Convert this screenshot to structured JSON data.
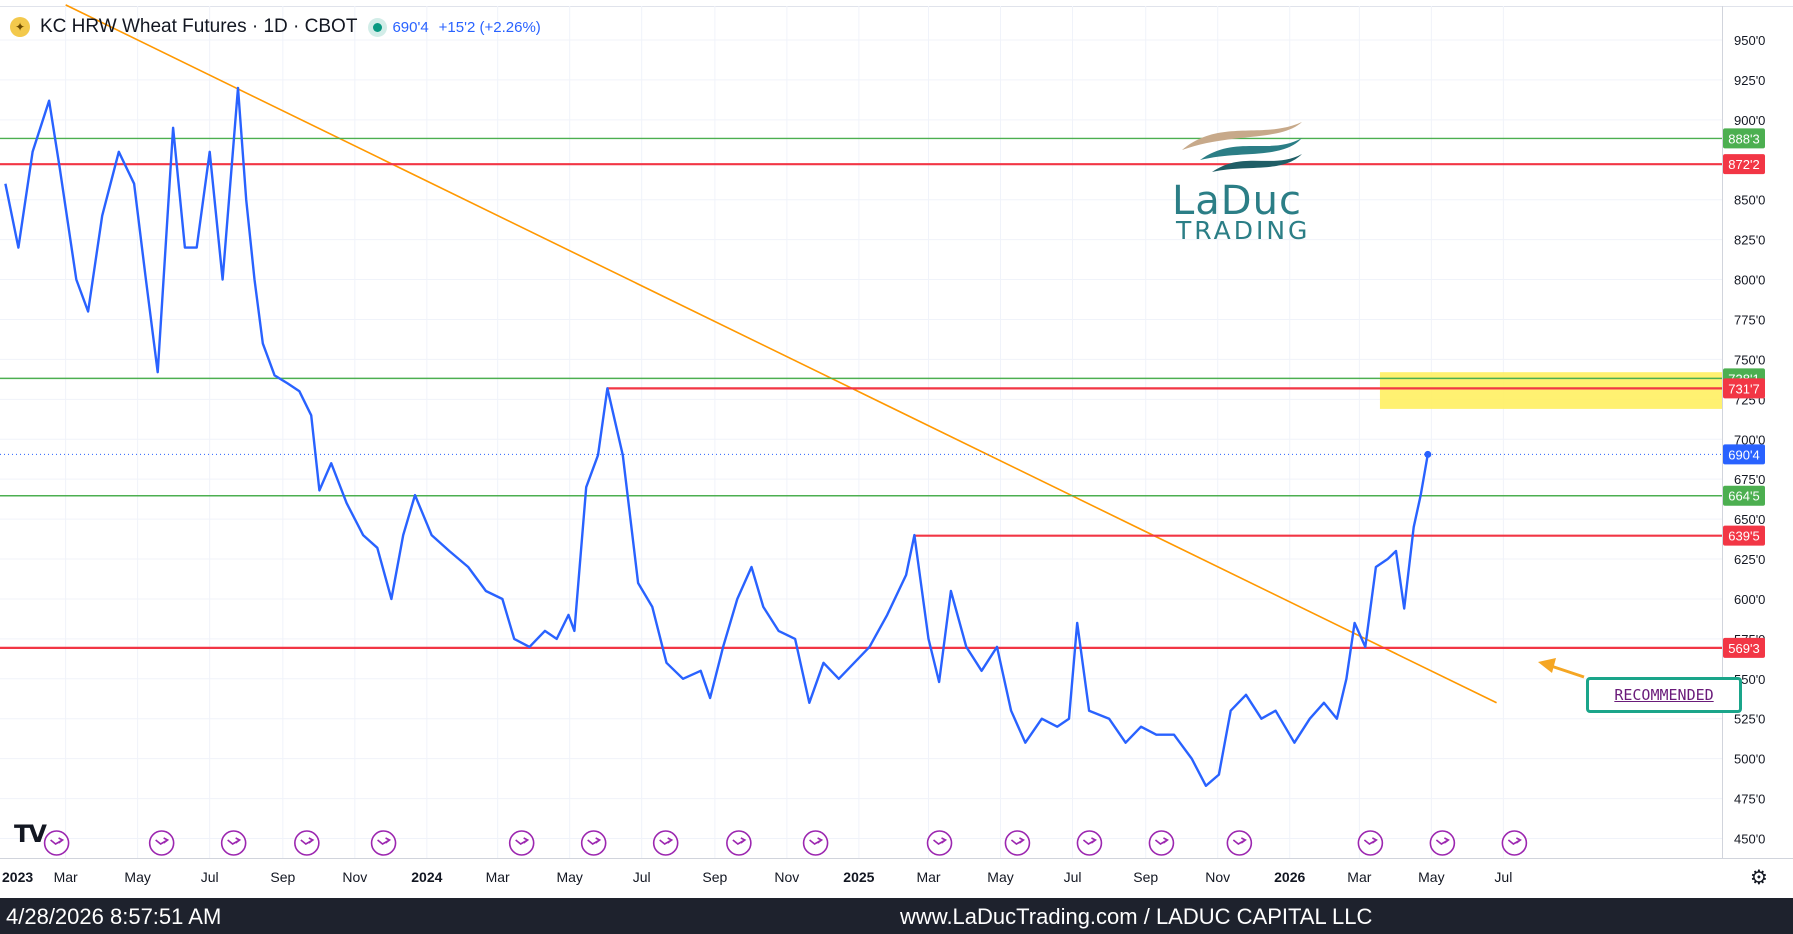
{
  "header": {
    "title": "KC HRW Wheat Futures · 1D · CBOT",
    "price": "690'4",
    "change": "+15'2 (+2.26%)",
    "symbol_icon": "wheat-icon"
  },
  "footer": {
    "timestamp": "4/28/2026 8:57:51 AM",
    "credit": "www.LaDucTrading.com / LADUC CAPITAL LLC"
  },
  "watermark": {
    "brand": "LaDuc",
    "sub": "TRADING",
    "platform_logo": "TV"
  },
  "callout": {
    "label": "RECOMMENDED"
  },
  "colors": {
    "series": "#2962ff",
    "support_resistance": "#f23645",
    "green_level": "#4caf50",
    "trendline": "#ff9800",
    "highlight": "#ffee58",
    "callout_border": "#1aa58a",
    "event_marker": "#9c27b0"
  },
  "chart_data": {
    "type": "line",
    "title": "KC HRW Wheat Futures · 1D · CBOT",
    "xlabel": "",
    "ylabel": "",
    "ylim": [
      440,
      965
    ],
    "x_tick_labels": [
      "2023",
      "Mar",
      "May",
      "Jul",
      "Sep",
      "Nov",
      "2024",
      "Mar",
      "May",
      "Jul",
      "Sep",
      "Nov",
      "2025",
      "Mar",
      "May",
      "Jul",
      "Sep",
      "Nov",
      "2026",
      "Mar",
      "May",
      "Jul"
    ],
    "x_tick_dates": [
      "2023-01-01",
      "2023-03-01",
      "2023-05-01",
      "2023-07-01",
      "2023-09-01",
      "2023-11-01",
      "2024-01-01",
      "2024-03-01",
      "2024-05-01",
      "2024-07-01",
      "2024-09-01",
      "2024-11-01",
      "2025-01-01",
      "2025-03-01",
      "2025-05-01",
      "2025-07-01",
      "2025-09-01",
      "2025-11-01",
      "2026-01-01",
      "2026-03-01",
      "2026-05-01",
      "2026-07-01"
    ],
    "y_tick_labels": [
      "950'0",
      "925'0",
      "900'0",
      "850'0",
      "825'0",
      "800'0",
      "775'0",
      "750'0",
      "725'0",
      "700'0",
      "675'0",
      "650'0",
      "625'0",
      "600'0",
      "575'0",
      "550'0",
      "525'0",
      "500'0",
      "475'0",
      "450'0"
    ],
    "y_tick_values": [
      950,
      925,
      900,
      850,
      825,
      800,
      775,
      750,
      725,
      700,
      675,
      650,
      625,
      600,
      575,
      550,
      525,
      500,
      475,
      450
    ],
    "series": [
      {
        "values": [
          [
            "2023-01-09",
            860
          ],
          [
            "2023-01-20",
            820
          ],
          [
            "2023-02-01",
            880
          ],
          [
            "2023-02-15",
            912
          ],
          [
            "2023-02-24",
            870
          ],
          [
            "2023-03-10",
            800
          ],
          [
            "2023-03-20",
            780
          ],
          [
            "2023-04-01",
            840
          ],
          [
            "2023-04-15",
            880
          ],
          [
            "2023-04-28",
            860
          ],
          [
            "2023-05-08",
            800
          ],
          [
            "2023-05-18",
            742
          ],
          [
            "2023-05-31",
            895
          ],
          [
            "2023-06-10",
            820
          ],
          [
            "2023-06-20",
            820
          ],
          [
            "2023-07-01",
            880
          ],
          [
            "2023-07-12",
            800
          ],
          [
            "2023-07-25",
            920
          ],
          [
            "2023-08-01",
            850
          ],
          [
            "2023-08-08",
            800
          ],
          [
            "2023-08-15",
            760
          ],
          [
            "2023-08-25",
            740
          ],
          [
            "2023-09-05",
            735
          ],
          [
            "2023-09-15",
            730
          ],
          [
            "2023-09-25",
            715
          ],
          [
            "2023-10-02",
            668
          ],
          [
            "2023-10-12",
            685
          ],
          [
            "2023-10-25",
            660
          ],
          [
            "2023-11-08",
            640
          ],
          [
            "2023-11-20",
            632
          ],
          [
            "2023-12-02",
            600
          ],
          [
            "2023-12-12",
            640
          ],
          [
            "2023-12-22",
            665
          ],
          [
            "2024-01-05",
            640
          ],
          [
            "2024-01-20",
            630
          ],
          [
            "2024-02-05",
            620
          ],
          [
            "2024-02-20",
            605
          ],
          [
            "2024-03-05",
            600
          ],
          [
            "2024-03-15",
            575
          ],
          [
            "2024-03-28",
            570
          ],
          [
            "2024-04-10",
            580
          ],
          [
            "2024-04-20",
            575
          ],
          [
            "2024-04-30",
            590
          ],
          [
            "2024-05-05",
            580
          ],
          [
            "2024-05-15",
            670
          ],
          [
            "2024-05-25",
            690
          ],
          [
            "2024-06-02",
            731.9
          ],
          [
            "2024-06-15",
            690
          ],
          [
            "2024-06-28",
            610
          ],
          [
            "2024-07-10",
            595
          ],
          [
            "2024-07-22",
            560
          ],
          [
            "2024-08-05",
            550
          ],
          [
            "2024-08-20",
            555
          ],
          [
            "2024-08-28",
            538
          ],
          [
            "2024-09-08",
            570
          ],
          [
            "2024-09-20",
            600
          ],
          [
            "2024-10-02",
            620
          ],
          [
            "2024-10-12",
            595
          ],
          [
            "2024-10-25",
            580
          ],
          [
            "2024-11-08",
            575
          ],
          [
            "2024-11-20",
            535
          ],
          [
            "2024-12-02",
            560
          ],
          [
            "2024-12-15",
            550
          ],
          [
            "2024-12-28",
            560
          ],
          [
            "2025-01-10",
            570
          ],
          [
            "2025-01-25",
            590
          ],
          [
            "2025-02-10",
            615
          ],
          [
            "2025-02-17",
            640
          ],
          [
            "2025-03-01",
            575
          ],
          [
            "2025-03-10",
            548
          ],
          [
            "2025-03-20",
            605
          ],
          [
            "2025-04-02",
            570
          ],
          [
            "2025-04-15",
            555
          ],
          [
            "2025-04-28",
            570
          ],
          [
            "2025-05-10",
            530
          ],
          [
            "2025-05-22",
            510
          ],
          [
            "2025-06-05",
            525
          ],
          [
            "2025-06-18",
            520
          ],
          [
            "2025-06-28",
            525
          ],
          [
            "2025-07-05",
            585
          ],
          [
            "2025-07-15",
            530
          ],
          [
            "2025-08-01",
            525
          ],
          [
            "2025-08-15",
            510
          ],
          [
            "2025-08-28",
            520
          ],
          [
            "2025-09-10",
            515
          ],
          [
            "2025-09-25",
            515
          ],
          [
            "2025-10-10",
            500
          ],
          [
            "2025-10-22",
            483
          ],
          [
            "2025-11-02",
            490
          ],
          [
            "2025-11-12",
            530
          ],
          [
            "2025-11-25",
            540
          ],
          [
            "2025-12-08",
            525
          ],
          [
            "2025-12-20",
            530
          ],
          [
            "2026-01-05",
            510
          ],
          [
            "2026-01-18",
            525
          ],
          [
            "2026-01-30",
            535
          ],
          [
            "2026-02-10",
            525
          ],
          [
            "2026-02-18",
            550
          ],
          [
            "2026-02-25",
            585
          ],
          [
            "2026-03-06",
            570
          ],
          [
            "2026-03-15",
            620
          ],
          [
            "2026-03-25",
            625
          ],
          [
            "2026-04-01",
            630
          ],
          [
            "2026-04-08",
            594
          ],
          [
            "2026-04-16",
            645
          ],
          [
            "2026-04-22",
            665
          ],
          [
            "2026-04-28",
            690.5
          ]
        ]
      }
    ],
    "horizontal_levels": [
      {
        "value": 888.375,
        "label": "888'3",
        "color": "#4caf50",
        "start": "2023-01-01"
      },
      {
        "value": 872.25,
        "label": "872'2",
        "color": "#f23645",
        "start": "2023-01-01"
      },
      {
        "value": 738.125,
        "label": "738'1",
        "color": "#4caf50",
        "start": "2023-01-01"
      },
      {
        "value": 731.875,
        "label": "731'7",
        "color": "#f23645",
        "start": "2024-06-02"
      },
      {
        "value": 664.625,
        "label": "664'5",
        "color": "#4caf50",
        "start": "2023-01-01"
      },
      {
        "value": 639.625,
        "label": "639'5",
        "color": "#f23645",
        "start": "2025-02-17"
      },
      {
        "value": 569.375,
        "label": "569'3",
        "color": "#f23645",
        "start": "2023-01-01"
      }
    ],
    "current_price": {
      "value": 690.5,
      "label": "690'4",
      "color": "#2962ff"
    },
    "trendline": {
      "from": [
        "2023-03-01",
        972
      ],
      "to": [
        "2026-04-10",
        540
      ],
      "color": "#ff9800"
    },
    "highlight_zone": {
      "from": "2026-04-01",
      "y_range": [
        719,
        742
      ],
      "color": "#ffee58"
    },
    "event_markers": [
      "2023-02-01",
      "2023-05-01",
      "2023-07-01",
      "2023-09-01",
      "2023-11-05",
      "2024-03-01",
      "2024-05-01",
      "2024-07-01",
      "2024-09-01",
      "2024-11-05",
      "2025-02-18",
      "2025-04-25",
      "2025-06-25",
      "2025-08-25",
      "2025-10-30",
      "2026-02-18",
      "2026-04-20",
      "2026-06-20"
    ],
    "grid": true,
    "legend": "none"
  }
}
